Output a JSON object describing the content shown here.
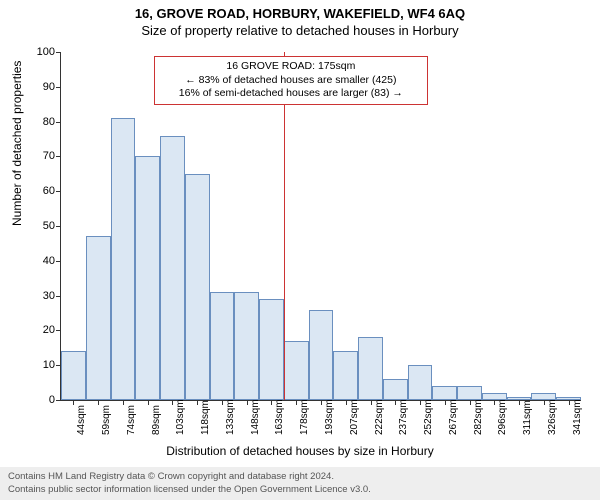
{
  "titles": {
    "main": "16, GROVE ROAD, HORBURY, WAKEFIELD, WF4 6AQ",
    "sub": "Size of property relative to detached houses in Horbury"
  },
  "ylabel": "Number of detached properties",
  "xlabel": "Distribution of detached houses by size in Horbury",
  "chart": {
    "type": "histogram",
    "ylim": [
      0,
      100
    ],
    "ytick_step": 10,
    "bar_fill": "#dbe7f3",
    "bar_stroke": "#6a8fbf",
    "bg": "#ffffff",
    "xticks": [
      "44sqm",
      "59sqm",
      "74sqm",
      "89sqm",
      "103sqm",
      "118sqm",
      "133sqm",
      "148sqm",
      "163sqm",
      "178sqm",
      "193sqm",
      "207sqm",
      "222sqm",
      "237sqm",
      "252sqm",
      "267sqm",
      "282sqm",
      "296sqm",
      "311sqm",
      "326sqm",
      "341sqm"
    ],
    "values": [
      14,
      47,
      81,
      70,
      76,
      65,
      31,
      31,
      29,
      17,
      26,
      14,
      18,
      6,
      10,
      4,
      4,
      2,
      1,
      2,
      1
    ]
  },
  "marker": {
    "position_index": 9,
    "color": "#cc3333",
    "lines": [
      "16 GROVE ROAD: 175sqm",
      "← 83% of detached houses are smaller (425)",
      "16% of semi-detached houses are larger (83) →"
    ]
  },
  "footer": {
    "line1": "Contains HM Land Registry data © Crown copyright and database right 2024.",
    "line2": "Contains public sector information licensed under the Open Government Licence v3.0."
  }
}
